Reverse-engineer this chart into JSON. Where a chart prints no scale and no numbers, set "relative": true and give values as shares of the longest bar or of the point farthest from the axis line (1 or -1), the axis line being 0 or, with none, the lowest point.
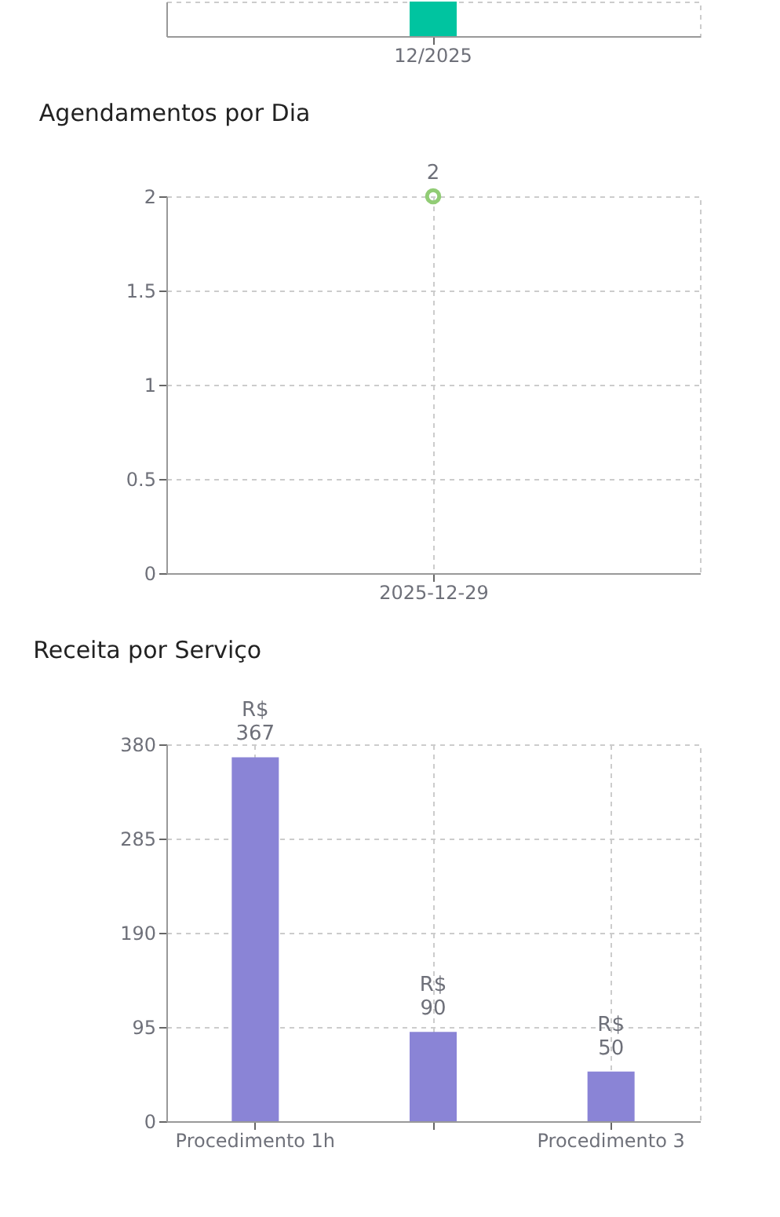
{
  "chart_data": [
    {
      "type": "bar",
      "categories": [
        "12/2025"
      ],
      "relative": true,
      "values": [
        1
      ],
      "color": "#00c4a0",
      "grid": false
    },
    {
      "type": "scatter",
      "title": "Agendamentos por Dia",
      "categories": [
        "2025-12-29"
      ],
      "values": [
        2
      ],
      "color": "#91cc75",
      "marker": "circle",
      "ylim": [
        0,
        2
      ],
      "yticks": [
        0,
        0.5,
        1,
        1.5,
        2
      ],
      "grid": true,
      "data_labels": true
    },
    {
      "type": "bar",
      "title": "Receita por Serviço",
      "categories": [
        "Procedimento 1h",
        null,
        "Procedimento 3"
      ],
      "values": [
        367,
        90,
        50
      ],
      "value_labels": [
        "R$ 367",
        "R$ 90",
        "R$ 50"
      ],
      "color": "#8a84d6",
      "ylim": [
        0,
        380
      ],
      "yticks": [
        0,
        95,
        190,
        285,
        380
      ],
      "grid": true
    }
  ]
}
